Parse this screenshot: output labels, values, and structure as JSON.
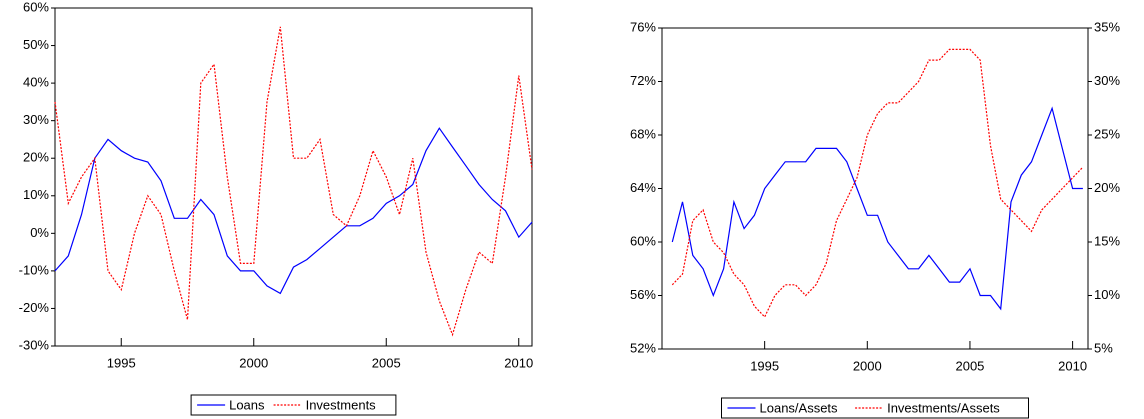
{
  "chart_data": [
    {
      "type": "line",
      "xlim": [
        1992.5,
        2010.5
      ],
      "xticks": [
        1995,
        2000,
        2005,
        2010
      ],
      "ylim": [
        -30,
        60
      ],
      "yticks": [
        {
          "value": -30,
          "label": "-30%"
        },
        {
          "value": -20,
          "label": "-20%"
        },
        {
          "value": -10,
          "label": "-10%"
        },
        {
          "value": 0,
          "label": "0%"
        },
        {
          "value": 10,
          "label": "10%"
        },
        {
          "value": 20,
          "label": "20%"
        },
        {
          "value": 30,
          "label": "30%"
        },
        {
          "value": 40,
          "label": "40%"
        },
        {
          "value": 50,
          "label": "50%"
        },
        {
          "value": 60,
          "label": "60%"
        }
      ],
      "legend": "bottom",
      "x": [
        1992.5,
        1993,
        1993.5,
        1994,
        1994.5,
        1995,
        1995.5,
        1996,
        1996.5,
        1997,
        1997.5,
        1998,
        1998.5,
        1999,
        1999.5,
        2000,
        2000.5,
        2001,
        2001.5,
        2002,
        2002.5,
        2003,
        2003.5,
        2004,
        2004.5,
        2005,
        2005.5,
        2006,
        2006.5,
        2007,
        2007.5,
        2008,
        2008.5,
        2009,
        2009.5,
        2010,
        2010.5
      ],
      "series": [
        {
          "name": "Loans",
          "color": "#0000ff",
          "style": "solid",
          "values": [
            -10,
            -6,
            5,
            20,
            25,
            22,
            20,
            19,
            14,
            4,
            4,
            9,
            5,
            -6,
            -10,
            -10,
            -14,
            -16,
            -9,
            -7,
            -4,
            -1,
            2,
            2,
            4,
            8,
            10,
            13,
            22,
            28,
            23,
            18,
            13,
            9,
            6,
            -1,
            3
          ]
        },
        {
          "name": "Investments",
          "color": "#ff0000",
          "style": "dashed",
          "values": [
            35,
            8,
            15,
            20,
            -10,
            -15,
            0,
            10,
            5,
            -10,
            -23,
            40,
            45,
            15,
            -8,
            -8,
            35,
            55,
            20,
            20,
            25,
            5,
            2,
            10,
            22,
            15,
            5,
            20,
            -5,
            -18,
            -27,
            -15,
            -5,
            -8,
            15,
            42,
            17
          ]
        }
      ]
    },
    {
      "type": "line",
      "xlim": [
        1990,
        2010.75
      ],
      "xticks": [
        1995,
        2000,
        2005,
        2010
      ],
      "ylim": [
        52,
        76
      ],
      "yticks": [
        {
          "value": 52,
          "label": "52%"
        },
        {
          "value": 56,
          "label": "56%"
        },
        {
          "value": 60,
          "label": "60%"
        },
        {
          "value": 64,
          "label": "64%"
        },
        {
          "value": 68,
          "label": "68%"
        },
        {
          "value": 72,
          "label": "72%"
        },
        {
          "value": 76,
          "label": "76%"
        }
      ],
      "y2lim": [
        5,
        35
      ],
      "y2ticks": [
        {
          "value": 5,
          "label": "5%"
        },
        {
          "value": 10,
          "label": "10%"
        },
        {
          "value": 15,
          "label": "15%"
        },
        {
          "value": 20,
          "label": "20%"
        },
        {
          "value": 25,
          "label": "25%"
        },
        {
          "value": 30,
          "label": "30%"
        },
        {
          "value": 35,
          "label": "35%"
        }
      ],
      "legend": "bottom",
      "x": [
        1990.5,
        1991,
        1991.5,
        1992,
        1992.5,
        1993,
        1993.5,
        1994,
        1994.5,
        1995,
        1995.5,
        1996,
        1996.5,
        1997,
        1997.5,
        1998,
        1998.5,
        1999,
        1999.5,
        2000,
        2000.5,
        2001,
        2001.5,
        2002,
        2002.5,
        2003,
        2003.5,
        2004,
        2004.5,
        2005,
        2005.5,
        2006,
        2006.5,
        2007,
        2007.5,
        2008,
        2008.5,
        2009,
        2009.5,
        2010,
        2010.5
      ],
      "series": [
        {
          "name": "Loans/Assets",
          "color": "#0000ff",
          "style": "solid",
          "values": [
            60,
            63,
            59,
            58,
            56,
            58,
            63,
            61,
            62,
            64,
            65,
            66,
            66,
            66,
            67,
            67,
            67,
            66,
            64,
            62,
            62,
            60,
            59,
            58,
            58,
            59,
            58,
            57,
            57,
            58,
            56,
            56,
            55,
            63,
            65,
            66,
            68,
            70,
            67,
            64,
            64
          ]
        },
        {
          "name": "Investments/Assets",
          "color": "#ff0000",
          "style": "dashed",
          "axis": "y2",
          "values": [
            11,
            12,
            17,
            18,
            15,
            14,
            12,
            11,
            9,
            8,
            10,
            11,
            11,
            10,
            11,
            13,
            17,
            19,
            21,
            25,
            27,
            28,
            28,
            29,
            30,
            32,
            32,
            33,
            33,
            33,
            32,
            24,
            19,
            18,
            17,
            16,
            18,
            19,
            20,
            21,
            22
          ]
        }
      ]
    }
  ]
}
